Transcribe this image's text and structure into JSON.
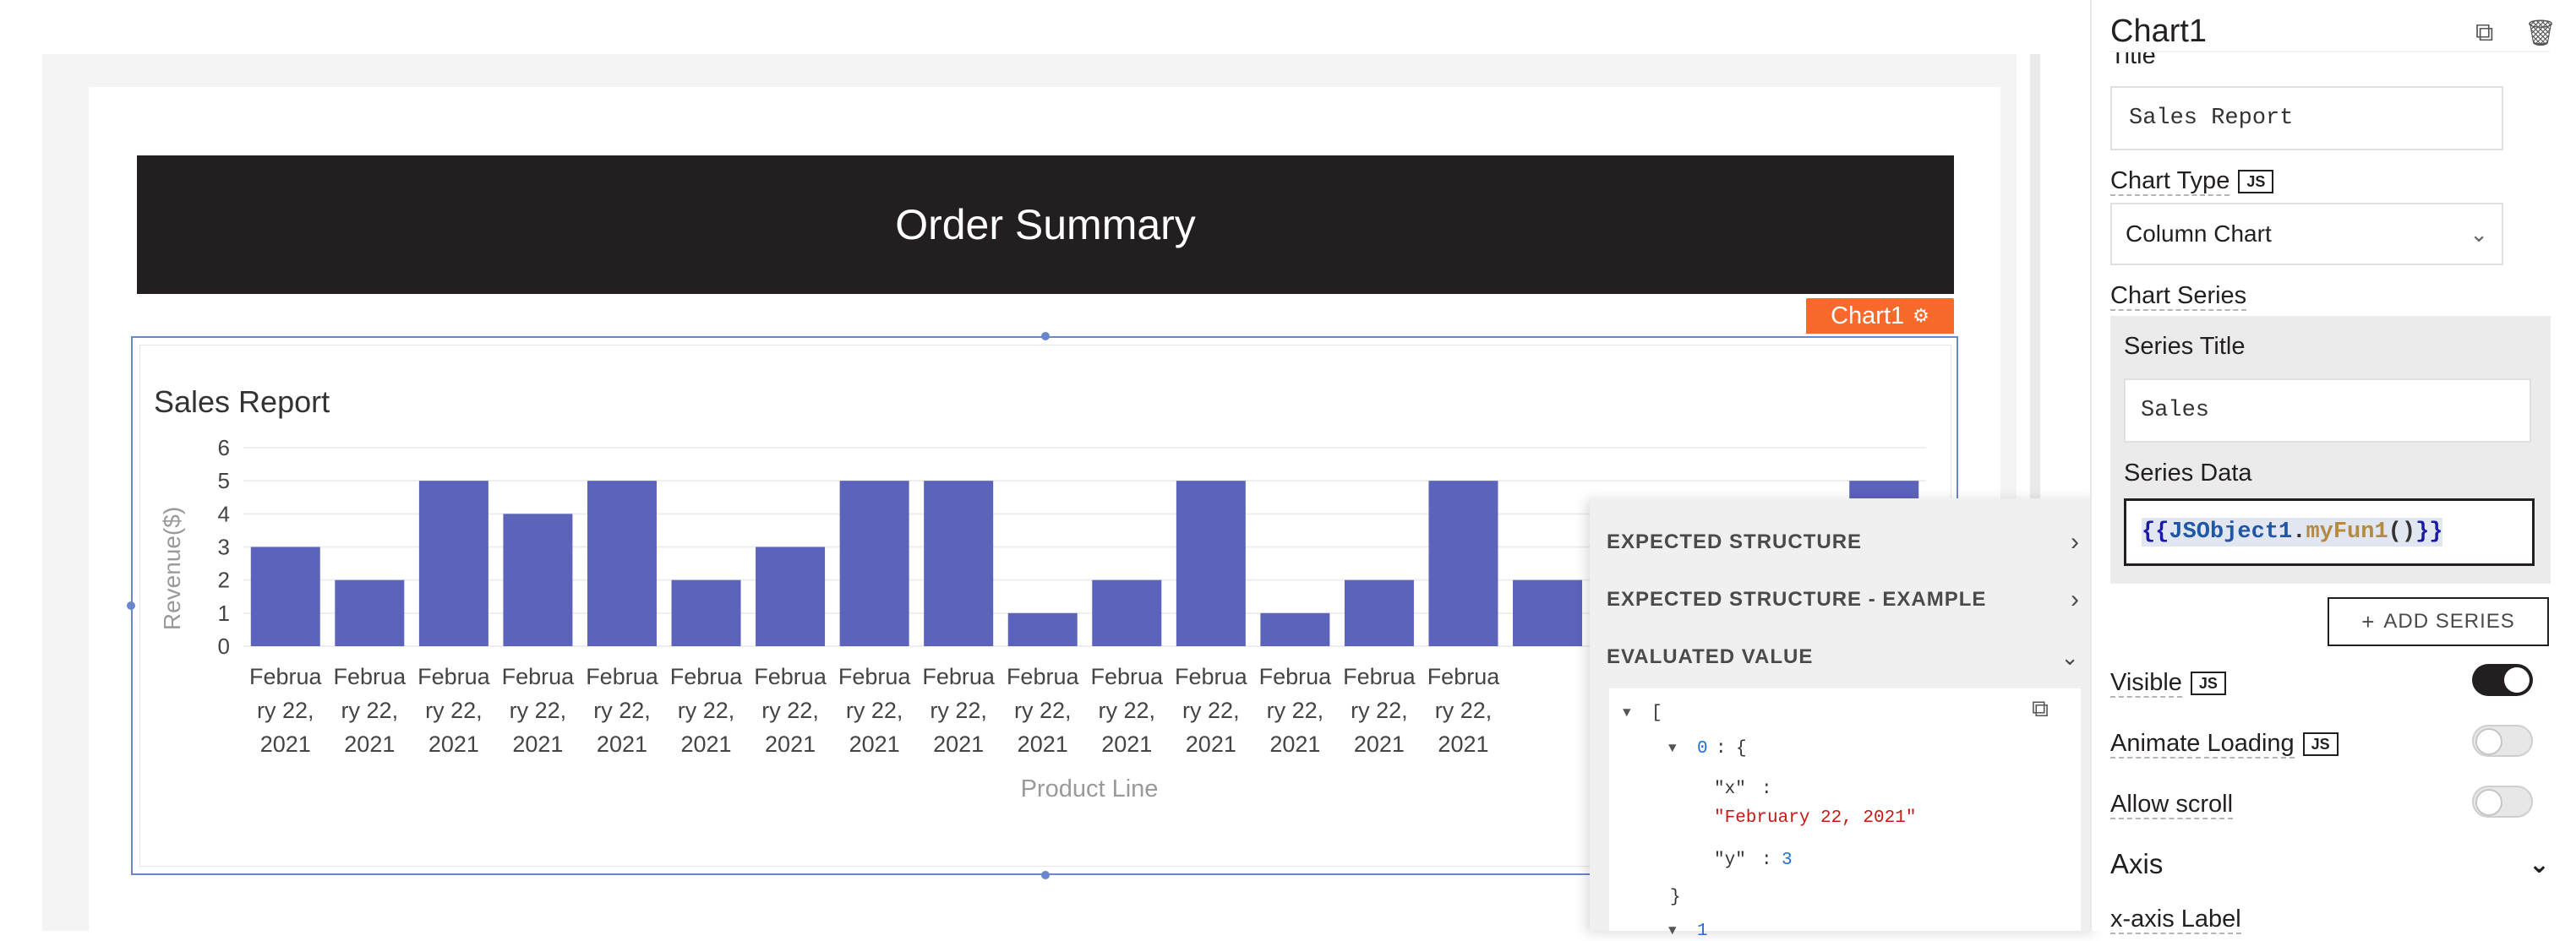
{
  "canvas": {
    "header_title": "Order Summary",
    "chart_tag_label": "Chart1",
    "chart_tag_icon": "gear-icon"
  },
  "chart_data": {
    "type": "bar",
    "title": "Sales Report",
    "xlabel": "Product Line",
    "ylabel": "Revenue($)",
    "ylim": [
      0,
      6
    ],
    "yticks": [
      0,
      1,
      2,
      3,
      4,
      5,
      6
    ],
    "bar_color": "#5c63ba",
    "categories": [
      "February 22, 2021",
      "February 22, 2021",
      "February 22, 2021",
      "February 22, 2021",
      "February 22, 2021",
      "February 22, 2021",
      "February 22, 2021",
      "February 22, 2021",
      "February 22, 2021",
      "February 22, 2021",
      "February 22, 2021",
      "February 22, 2021",
      "February 22, 2021",
      "February 22, 2021",
      "February 22, 2021",
      "February 22, 2021",
      "February 22, 2021",
      "February 22, 2021",
      "February 22, 2021",
      "February 22, 2021"
    ],
    "category_lines": [
      "Februa",
      "ry 22,",
      "2021"
    ],
    "series": [
      {
        "values": [
          3,
          2,
          5,
          4,
          5,
          2,
          3,
          5,
          5,
          1,
          2,
          5,
          1,
          2,
          5,
          2,
          null,
          null,
          null,
          5
        ]
      }
    ],
    "visible_label_count": 15
  },
  "popup": {
    "rows": [
      {
        "label": "EXPECTED STRUCTURE",
        "icon": "chevron-right-icon"
      },
      {
        "label": "EXPECTED STRUCTURE - EXAMPLE",
        "icon": "chevron-right-icon"
      },
      {
        "label": "EVALUATED VALUE",
        "icon": "chevron-down-icon"
      }
    ],
    "json": {
      "open_bracket": "[",
      "index": "0",
      "brace_open": "{",
      "x_key": "\"x\"",
      "x_value": "\"February 22, 2021\"",
      "y_key": "\"y\"",
      "y_value": "3",
      "brace_close": "}",
      "next_index": "1",
      "colon": ":"
    },
    "copy_icon": "copy-icon"
  },
  "pane": {
    "widget_name": "Chart1",
    "title_label": "Title",
    "title_value": "Sales Report",
    "chart_type_label": "Chart Type",
    "js_badge": "JS",
    "chart_type_value": "Column Chart",
    "chart_series_label": "Chart Series",
    "series_title_label": "Series Title",
    "series_title_value": "Sales",
    "series_data_label": "Series Data",
    "series_data_parts": {
      "open": "{{",
      "obj": "JSObject1",
      "dot": ".",
      "fn": "myFun1",
      "parens": "()",
      "close": "}}"
    },
    "add_series_label": "ADD SERIES",
    "visible_label": "Visible",
    "visible_on": true,
    "animate_label": "Animate Loading",
    "animate_on": false,
    "scroll_label": "Allow scroll",
    "scroll_on": false,
    "axis_label": "Axis",
    "x_axis_label": "x-axis Label"
  }
}
